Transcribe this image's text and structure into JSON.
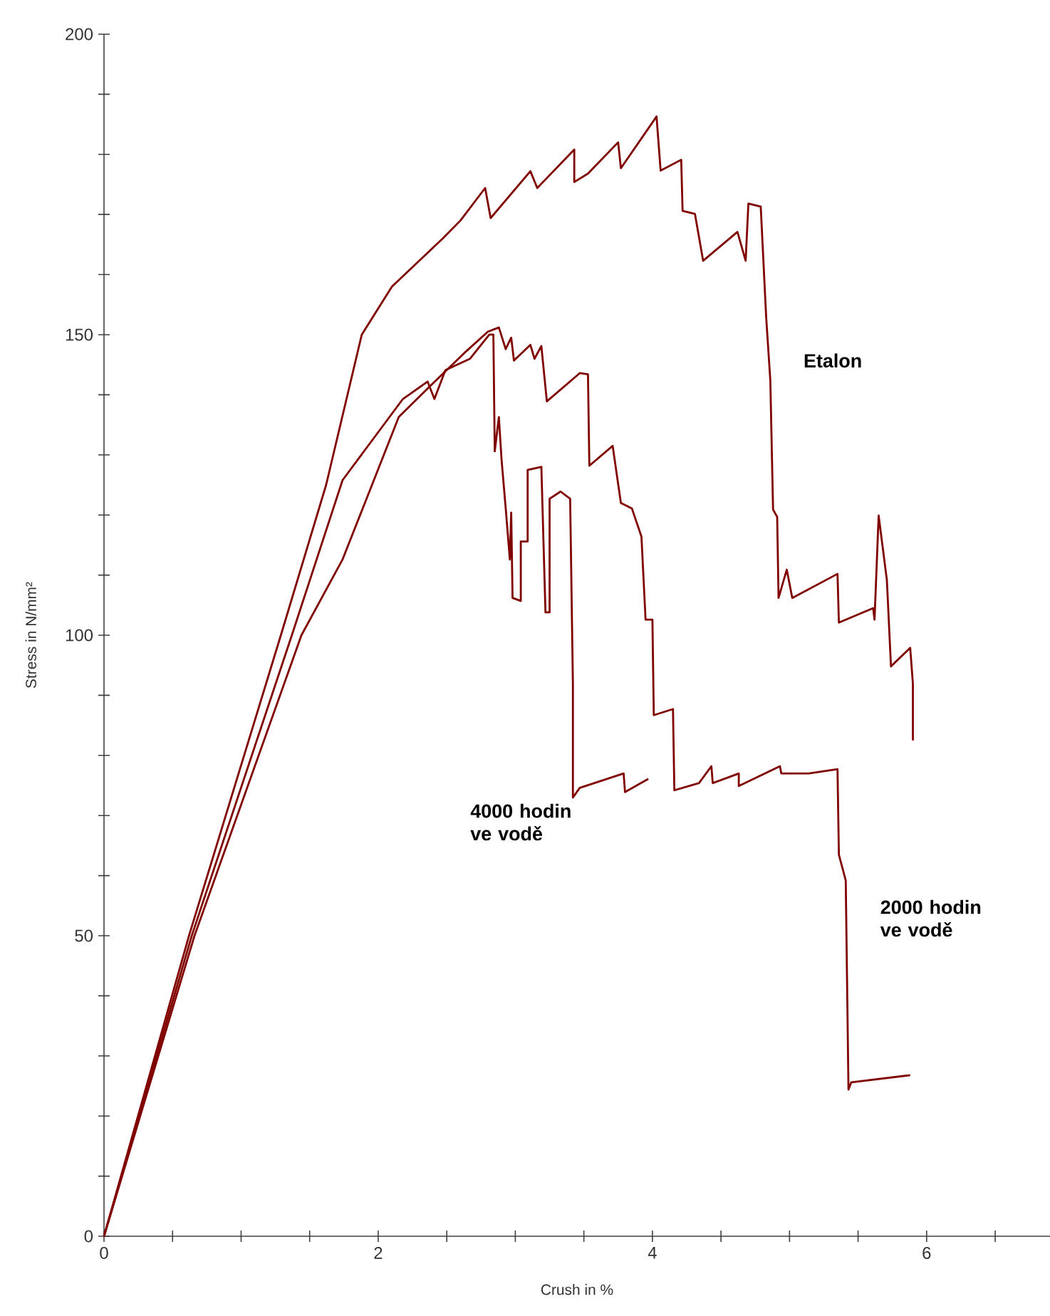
{
  "chart_data": {
    "type": "line",
    "xlabel": "Crush in %",
    "ylabel": "Stress in N/mm²",
    "xlim": [
      0,
      6.9
    ],
    "ylim": [
      0,
      200
    ],
    "xticks": [
      0,
      {
        "value": 0.5,
        "label": null
      },
      {
        "value": 1,
        "label": null
      },
      {
        "value": 1.5,
        "label": null
      },
      2,
      {
        "value": 2.5,
        "label": null
      },
      {
        "value": 3,
        "label": null
      },
      {
        "value": 3.5,
        "label": null
      },
      4,
      {
        "value": 4.5,
        "label": null
      },
      {
        "value": 5,
        "label": null
      },
      {
        "value": 5.5,
        "label": null
      },
      6,
      {
        "value": 6.5,
        "label": null
      }
    ],
    "yticks": [
      0,
      {
        "value": 10,
        "label": null
      },
      {
        "value": 20,
        "label": null
      },
      {
        "value": 30,
        "label": null
      },
      {
        "value": 40,
        "label": null
      },
      50,
      {
        "value": 60,
        "label": null
      },
      {
        "value": 70,
        "label": null
      },
      {
        "value": 80,
        "label": null
      },
      {
        "value": 90,
        "label": null
      },
      100,
      {
        "value": 110,
        "label": null
      },
      {
        "value": 120,
        "label": null
      },
      {
        "value": 130,
        "label": null
      },
      {
        "value": 140,
        "label": null
      },
      150,
      {
        "value": 160,
        "label": null
      },
      {
        "value": 170,
        "label": null
      },
      {
        "value": 180,
        "label": null
      },
      {
        "value": 190,
        "label": null
      },
      200
    ],
    "series": [
      {
        "name": "Etalon",
        "color": "#800000",
        "x": [
          0,
          0.62,
          1.29,
          1.62,
          1.88,
          2.1,
          2.47,
          2.6,
          2.78,
          2.82,
          3.11,
          3.16,
          3.43,
          3.43,
          3.53,
          3.75,
          3.77,
          4.03,
          4.06,
          4.21,
          4.22,
          4.31,
          4.37,
          4.62,
          4.68,
          4.7,
          4.79,
          4.83,
          4.86,
          4.88,
          4.91,
          4.92,
          4.98,
          5.02,
          5.35,
          5.36,
          5.61,
          5.62,
          5.65,
          5.71,
          5.74,
          5.88,
          5.9,
          5.9
        ],
        "values": [
          0,
          50,
          100,
          125,
          150,
          158,
          166,
          169,
          174.4,
          169.4,
          177.2,
          174.4,
          180.8,
          175.4,
          176.8,
          182,
          177.7,
          186.3,
          177.3,
          179.1,
          170.6,
          170.1,
          162.3,
          167.1,
          162.3,
          171.8,
          171.3,
          152.8,
          142.4,
          120.9,
          119.7,
          106.2,
          110.9,
          106.2,
          110.2,
          102.1,
          104.5,
          102.6,
          119.9,
          109.2,
          94.8,
          97.9,
          91.9,
          82.5
        ]
      },
      {
        "name": "4000 hodin ve vodě",
        "color": "#800000",
        "x": [
          0,
          0.64,
          1.37,
          1.74,
          2.18,
          2.36,
          2.41,
          2.49,
          2.67,
          2.81,
          2.84,
          2.85,
          2.88,
          2.9,
          2.93,
          2.96,
          2.97,
          2.98,
          3.04,
          3.04,
          3.09,
          3.09,
          3.19,
          3.22,
          3.25,
          3.25,
          3.33,
          3.4,
          3.42,
          3.42,
          3.47,
          3.79,
          3.8,
          3.97
        ],
        "values": [
          0,
          50,
          100,
          125.8,
          139.3,
          142.2,
          139.3,
          144.1,
          146,
          150,
          150,
          130.6,
          136.3,
          129.1,
          121.1,
          112.6,
          120.4,
          106.2,
          105.7,
          115.6,
          115.6,
          127.5,
          128,
          103.8,
          103.8,
          122.7,
          123.9,
          122.7,
          91.9,
          73,
          74.6,
          77,
          73.9,
          76.1
        ]
      },
      {
        "name": "2000 hodin ve vodě",
        "color": "#800000",
        "x": [
          0,
          0.66,
          1.44,
          1.74,
          2.15,
          2.39,
          2.64,
          2.8,
          2.88,
          2.93,
          2.97,
          2.99,
          3.11,
          3.14,
          3.19,
          3.23,
          3.47,
          3.53,
          3.54,
          3.71,
          3.77,
          3.85,
          3.92,
          3.95,
          4.0,
          4.01,
          4.15,
          4.16,
          4.34,
          4.43,
          4.44,
          4.63,
          4.63,
          4.93,
          4.94,
          5.14,
          5.35,
          5.36,
          5.41,
          5.43,
          5.45,
          5.88
        ],
        "values": [
          0,
          50,
          100,
          112.6,
          136.3,
          141.7,
          147.2,
          150.5,
          151.2,
          147.6,
          149.5,
          145.7,
          148.3,
          146,
          148.1,
          138.9,
          143.6,
          143.4,
          128.2,
          131.5,
          122,
          121.1,
          116.4,
          102.6,
          102.6,
          86.7,
          87.7,
          74.2,
          75.4,
          78.2,
          75.4,
          77,
          74.9,
          78.2,
          77,
          77,
          77.7,
          63.5,
          59.2,
          24.4,
          25.6,
          26.8
        ]
      }
    ]
  }
}
